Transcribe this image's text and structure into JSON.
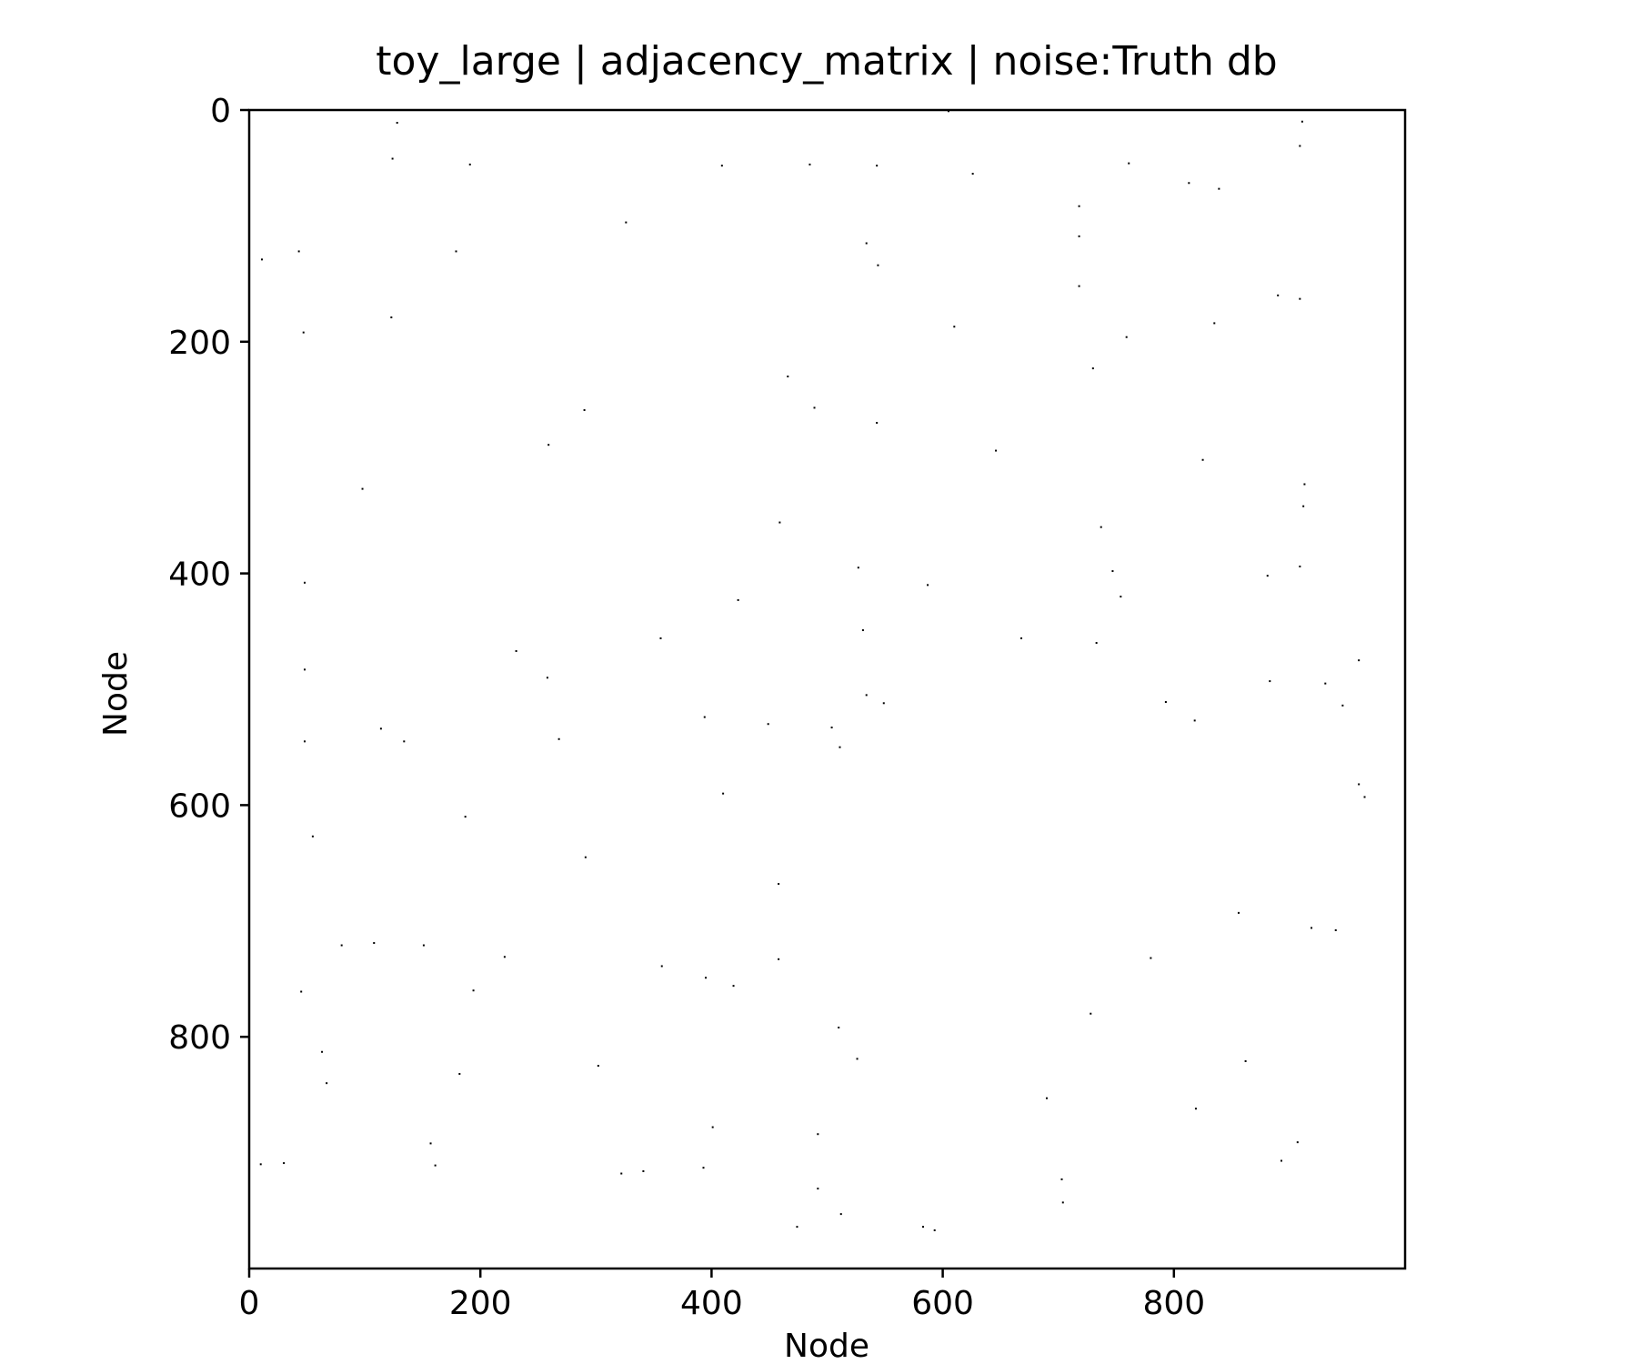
{
  "chart_data": {
    "type": "scatter",
    "title": "toy_large | adjacency_matrix | noise:Truth db",
    "xlabel": "Node",
    "ylabel": "Node",
    "xlim": [
      0,
      1000
    ],
    "ylim": [
      1000,
      0
    ],
    "y_inverted": true,
    "x_ticks": [
      0,
      200,
      400,
      600,
      800
    ],
    "y_ticks": [
      0,
      200,
      400,
      600,
      800
    ],
    "x_tick_labels": [
      "0",
      "200",
      "400",
      "600",
      "800"
    ],
    "y_tick_labels": [
      "0",
      "200",
      "400",
      "600",
      "800"
    ],
    "grid": false,
    "marker_color": "#000000",
    "points": [
      [
        605,
        1
      ],
      [
        128,
        11
      ],
      [
        911,
        10
      ],
      [
        909,
        31
      ],
      [
        124,
        42
      ],
      [
        191,
        47
      ],
      [
        409,
        48
      ],
      [
        485,
        47
      ],
      [
        543,
        48
      ],
      [
        761,
        46
      ],
      [
        626,
        55
      ],
      [
        813,
        63
      ],
      [
        839,
        68
      ],
      [
        718,
        83
      ],
      [
        326,
        97
      ],
      [
        718,
        109
      ],
      [
        534,
        115
      ],
      [
        43,
        122
      ],
      [
        179,
        122
      ],
      [
        11,
        129
      ],
      [
        544,
        134
      ],
      [
        718,
        152
      ],
      [
        890,
        160
      ],
      [
        909,
        163
      ],
      [
        835,
        184
      ],
      [
        123,
        179
      ],
      [
        47,
        192
      ],
      [
        610,
        187
      ],
      [
        759,
        196
      ],
      [
        730,
        223
      ],
      [
        466,
        230
      ],
      [
        489,
        257
      ],
      [
        290,
        259
      ],
      [
        543,
        270
      ],
      [
        259,
        289
      ],
      [
        646,
        294
      ],
      [
        825,
        302
      ],
      [
        913,
        323
      ],
      [
        98,
        327
      ],
      [
        912,
        342
      ],
      [
        459,
        356
      ],
      [
        737,
        360
      ],
      [
        527,
        395
      ],
      [
        747,
        398
      ],
      [
        909,
        394
      ],
      [
        881,
        402
      ],
      [
        48,
        408
      ],
      [
        587,
        410
      ],
      [
        754,
        420
      ],
      [
        423,
        423
      ],
      [
        356,
        456
      ],
      [
        668,
        456
      ],
      [
        733,
        460
      ],
      [
        531,
        449
      ],
      [
        231,
        467
      ],
      [
        960,
        475
      ],
      [
        48,
        483
      ],
      [
        258,
        490
      ],
      [
        883,
        493
      ],
      [
        931,
        495
      ],
      [
        534,
        505
      ],
      [
        549,
        512
      ],
      [
        793,
        511
      ],
      [
        946,
        514
      ],
      [
        394,
        524
      ],
      [
        818,
        527
      ],
      [
        449,
        530
      ],
      [
        114,
        534
      ],
      [
        504,
        533
      ],
      [
        48,
        545
      ],
      [
        134,
        545
      ],
      [
        268,
        543
      ],
      [
        511,
        550
      ],
      [
        410,
        590
      ],
      [
        960,
        582
      ],
      [
        965,
        593
      ],
      [
        0,
        604
      ],
      [
        187,
        610
      ],
      [
        55,
        627
      ],
      [
        291,
        645
      ],
      [
        458,
        668
      ],
      [
        856,
        693
      ],
      [
        919,
        706
      ],
      [
        940,
        708
      ],
      [
        80,
        721
      ],
      [
        108,
        719
      ],
      [
        151,
        721
      ],
      [
        221,
        731
      ],
      [
        458,
        733
      ],
      [
        780,
        732
      ],
      [
        357,
        739
      ],
      [
        395,
        749
      ],
      [
        419,
        756
      ],
      [
        45,
        761
      ],
      [
        194,
        760
      ],
      [
        728,
        780
      ],
      [
        510,
        792
      ],
      [
        63,
        813
      ],
      [
        526,
        819
      ],
      [
        862,
        821
      ],
      [
        302,
        825
      ],
      [
        182,
        832
      ],
      [
        67,
        840
      ],
      [
        690,
        853
      ],
      [
        819,
        862
      ],
      [
        401,
        878
      ],
      [
        492,
        884
      ],
      [
        157,
        892
      ],
      [
        907,
        891
      ],
      [
        10,
        910
      ],
      [
        30,
        909
      ],
      [
        161,
        911
      ],
      [
        893,
        907
      ],
      [
        393,
        913
      ],
      [
        341,
        916
      ],
      [
        322,
        918
      ],
      [
        703,
        923
      ],
      [
        492,
        931
      ],
      [
        704,
        943
      ],
      [
        512,
        953
      ],
      [
        474,
        964
      ],
      [
        583,
        964
      ],
      [
        593,
        967
      ]
    ]
  }
}
